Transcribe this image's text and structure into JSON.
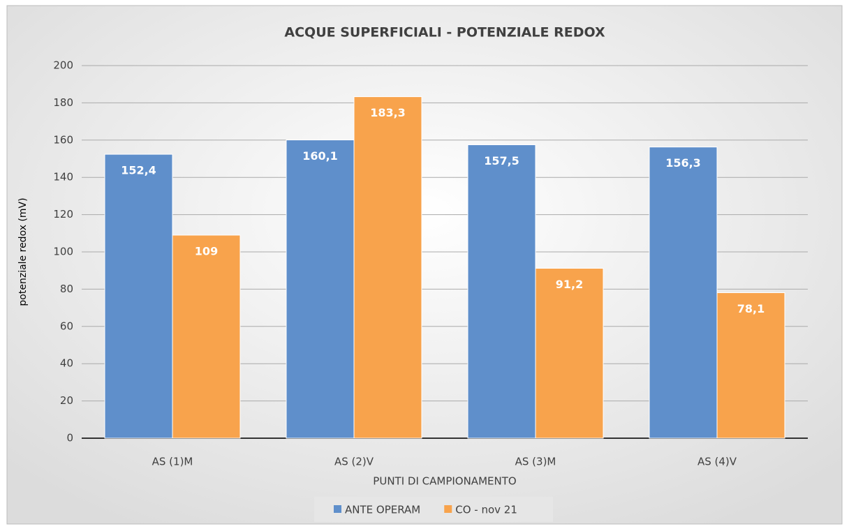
{
  "chart_data": {
    "type": "bar",
    "title": "ACQUE SUPERFICIALI - POTENZIALE REDOX",
    "x_label": "PUNTI DI CAMPIONAMENTO",
    "y_label": "potenziale redox (mV)",
    "categories": [
      "AS (1)M",
      "AS (2)V",
      "AS (3)M",
      "AS (4)V"
    ],
    "series": [
      {
        "name": "ANTE OPERAM",
        "color": "#5f8fcb",
        "values": [
          152.4,
          160.1,
          157.5,
          156.3
        ],
        "value_labels": [
          "152,4",
          "160,1",
          "157,5",
          "156,3"
        ]
      },
      {
        "name": "CO - nov 21",
        "color": "#f8a34c",
        "values": [
          109,
          183.3,
          91.2,
          78.1
        ],
        "value_labels": [
          "109",
          "183,3",
          "91,2",
          "78,1"
        ]
      }
    ],
    "ylim": [
      0,
      200
    ],
    "yticks": [
      0,
      20,
      40,
      60,
      80,
      100,
      120,
      140,
      160,
      180,
      200
    ],
    "grid": true,
    "legend": "bottom"
  }
}
